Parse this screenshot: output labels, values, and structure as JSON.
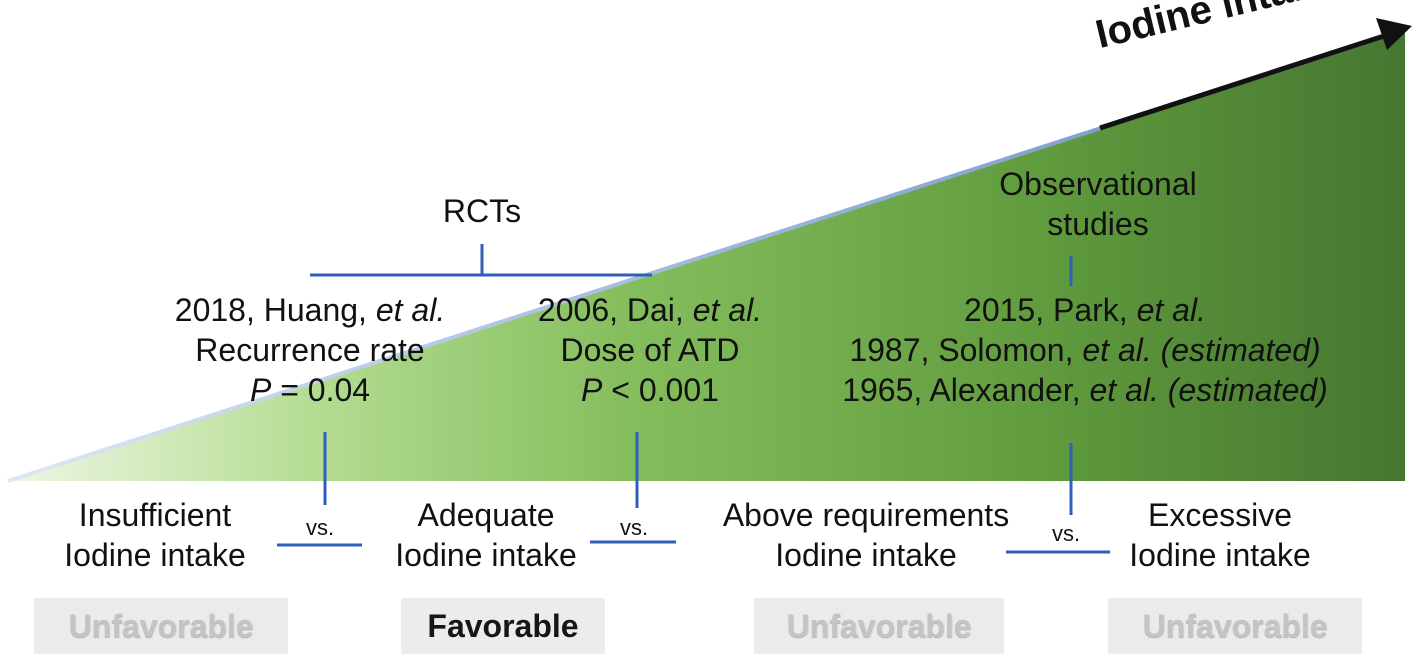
{
  "arrow": {
    "label": "Iodine intake"
  },
  "rcts": {
    "header": "RCTs",
    "huang": {
      "cite_prefix": "2018, Huang, ",
      "cite_etal": "et al.",
      "outcome": "Recurrence rate",
      "p_symbol": "P",
      "p_value": " = 0.04"
    },
    "dai": {
      "cite_prefix": "2006, Dai, ",
      "cite_etal": "et al.",
      "outcome": "Dose of ATD",
      "p_symbol": "P",
      "p_value": " < 0.001"
    }
  },
  "observational": {
    "header_line1": "Observational",
    "header_line2": "studies",
    "park": {
      "cite_prefix": "2015, Park, ",
      "cite_etal": "et al."
    },
    "solomon": {
      "cite_prefix": "1987, Solomon, ",
      "cite_etal": "et al. (estimated)"
    },
    "alexander": {
      "cite_prefix": "1965, Alexander, ",
      "cite_etal": "et al. (estimated)"
    }
  },
  "categories": [
    {
      "line1": "Insufficient",
      "line2": "Iodine intake",
      "badge": "Unfavorable"
    },
    {
      "line1": "Adequate",
      "line2": "Iodine intake",
      "badge": "Favorable"
    },
    {
      "line1": "Above requirements",
      "line2": "Iodine intake",
      "badge": "Unfavorable"
    },
    {
      "line1": "Excessive",
      "line2": "Iodine intake",
      "badge": "Unfavorable"
    }
  ],
  "vs_label": "vs.",
  "colors": {
    "wedge_light": "#d9ecc6",
    "wedge_mid": "#86c061",
    "wedge_dark": "#4a7a30",
    "connector": "#2f5fb8",
    "arrow": "#111111"
  }
}
